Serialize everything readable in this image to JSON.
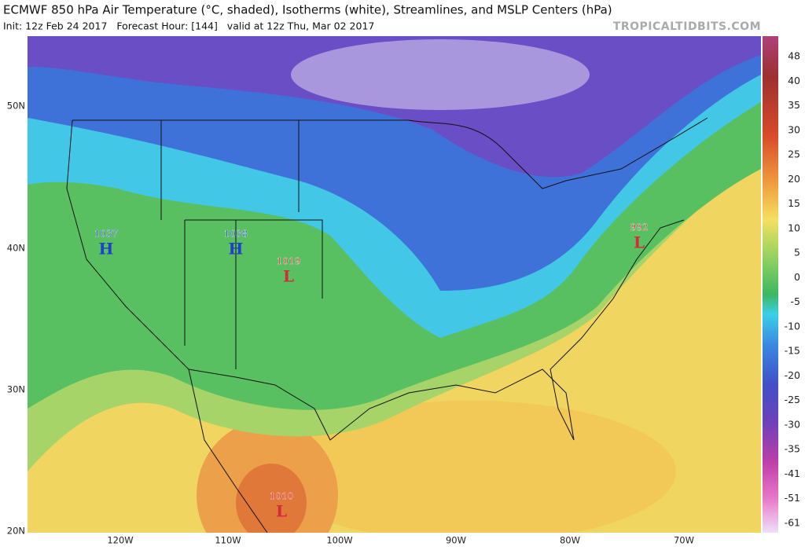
{
  "header": {
    "title": "ECMWF 850 hPa Air Temperature (°C, shaded), Isotherms (white), Streamlines, and MSLP Centers (hPa)",
    "init": "Init: 12z Feb 24 2017   Forecast Hour: [144]   valid at 12z Thu, Mar 02 2017",
    "watermark": "TROPICALTIDBITS.COM"
  },
  "map": {
    "lat_labels": [
      "50N",
      "40N",
      "30N",
      "20N"
    ],
    "lon_labels": [
      "120W",
      "110W",
      "100W",
      "90W",
      "80W",
      "70W"
    ],
    "centers": [
      {
        "value": 1037,
        "symbol": "H"
      },
      {
        "value": 1038,
        "symbol": "H"
      },
      {
        "value": 1019,
        "symbol": "L"
      },
      {
        "value": 992,
        "symbol": "L"
      },
      {
        "value": 1010,
        "symbol": "L"
      }
    ]
  },
  "colorbar": {
    "labels": [
      48,
      40,
      35,
      30,
      25,
      20,
      15,
      10,
      5,
      0,
      -5,
      -10,
      -15,
      -20,
      -25,
      -30,
      -35,
      -41,
      -51,
      -61
    ]
  }
}
